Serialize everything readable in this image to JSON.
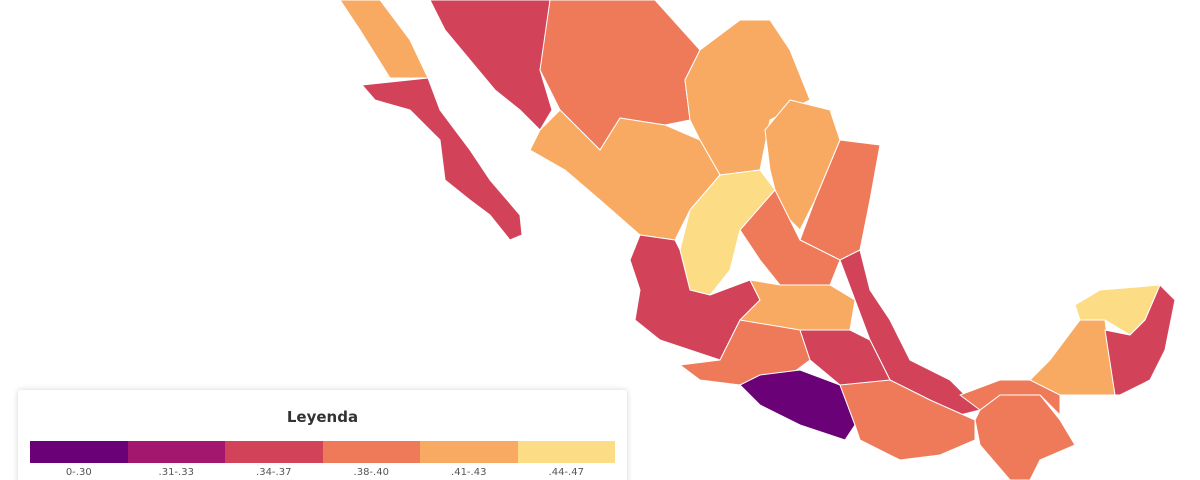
{
  "legend": {
    "title": "Leyenda",
    "items": [
      {
        "label": "0-.30",
        "color": "#6a0177"
      },
      {
        "label": ".31-.33",
        "color": "#a3176f"
      },
      {
        "label": ".34-.37",
        "color": "#d2435a"
      },
      {
        "label": ".38-.40",
        "color": "#ee7a5a"
      },
      {
        "label": ".41-.43",
        "color": "#f8aa62"
      },
      {
        "label": ".44-.47",
        "color": "#fcdc84"
      }
    ]
  }
}
